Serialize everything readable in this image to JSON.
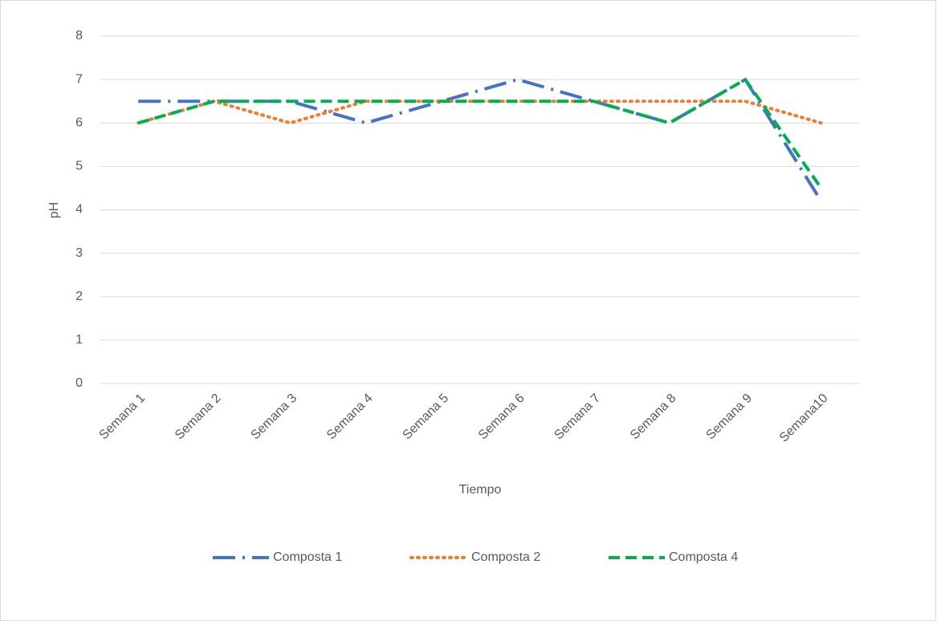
{
  "chart_data": {
    "type": "line",
    "x_label": "Tiempo",
    "y_label": "pH",
    "categories": [
      "Semana 1",
      "Semana 2",
      "Semana 3",
      "Semana 4",
      "Semana 5",
      "Semana 6",
      "Semana 7",
      "Semana 8",
      "Semana 9",
      "Semana10"
    ],
    "series": [
      {
        "name": "Composta 1",
        "color": "#4472c4",
        "dash": "long-dash-dot",
        "values": [
          6.5,
          6.5,
          6.5,
          6,
          6.5,
          7,
          6.5,
          6,
          7,
          4.2
        ]
      },
      {
        "name": "Composta 2",
        "color": "#ed7d31",
        "dash": "dot",
        "values": [
          6,
          6.5,
          6,
          6.5,
          6.5,
          6.5,
          6.5,
          6.5,
          6.5,
          6
        ]
      },
      {
        "name": "Composta 4",
        "color": "#00b050",
        "dash": "dash",
        "values": [
          6,
          6.5,
          6.5,
          6.5,
          6.5,
          6.5,
          6.5,
          6,
          7,
          4.5
        ]
      }
    ],
    "ylim": [
      0,
      8
    ],
    "yticks": [
      0,
      1,
      2,
      3,
      4,
      5,
      6,
      7,
      8
    ],
    "grid": true,
    "legend": "bottom"
  }
}
